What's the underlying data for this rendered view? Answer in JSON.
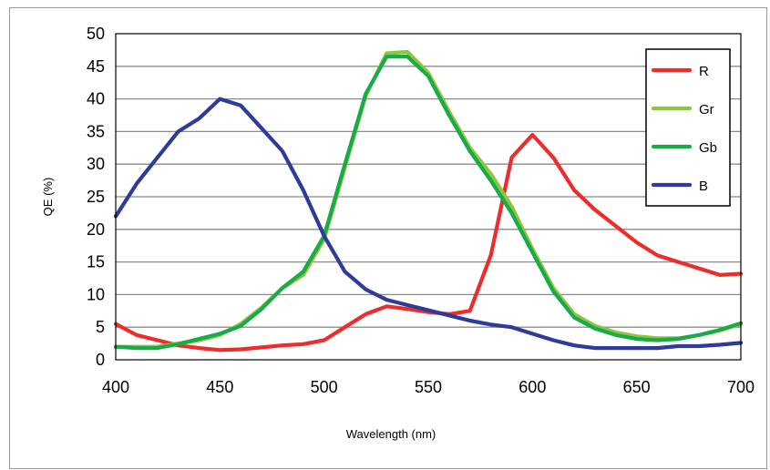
{
  "chart_data": {
    "type": "line",
    "title": "",
    "xlabel": "Wavelength (nm)",
    "ylabel": "QE (%)",
    "xlim": [
      400,
      700
    ],
    "ylim": [
      0,
      50
    ],
    "x_ticks": [
      400,
      450,
      500,
      550,
      600,
      650,
      700
    ],
    "y_ticks": [
      0,
      5,
      10,
      15,
      20,
      25,
      30,
      35,
      40,
      45,
      50
    ],
    "grid": "horizontal",
    "legend_position": "top-right",
    "x": [
      400,
      410,
      420,
      430,
      440,
      450,
      460,
      470,
      480,
      490,
      500,
      510,
      520,
      530,
      540,
      550,
      560,
      570,
      580,
      590,
      600,
      610,
      620,
      630,
      640,
      650,
      660,
      670,
      680,
      690,
      700
    ],
    "series": [
      {
        "name": "R",
        "color": "#ee2c2c",
        "values": [
          5.5,
          3.8,
          3.0,
          2.2,
          1.8,
          1.5,
          1.6,
          1.9,
          2.2,
          2.4,
          3.0,
          5.0,
          7.0,
          8.2,
          7.8,
          7.3,
          7.0,
          7.5,
          16,
          31,
          34.5,
          31,
          26,
          23,
          20.5,
          18,
          16,
          15,
          14,
          13,
          13.2
        ]
      },
      {
        "name": "Gr",
        "color": "#8cc63f",
        "values": [
          2.0,
          2.0,
          2.0,
          2.5,
          3.0,
          3.8,
          5.5,
          8.0,
          11.0,
          13.0,
          18.5,
          29.5,
          40.5,
          47.0,
          47.2,
          44.0,
          38.0,
          32.5,
          28.5,
          23.5,
          17.0,
          11.0,
          7.0,
          5.2,
          4.2,
          3.6,
          3.3,
          3.3,
          3.8,
          4.5,
          5.5
        ]
      },
      {
        "name": "Gb",
        "color": "#1aab48",
        "values": [
          2.0,
          1.8,
          1.8,
          2.4,
          3.2,
          4.0,
          5.2,
          7.8,
          11.0,
          13.5,
          19.0,
          30.0,
          40.8,
          46.5,
          46.5,
          43.5,
          37.5,
          32.0,
          27.5,
          22.5,
          16.5,
          10.5,
          6.5,
          4.8,
          3.8,
          3.2,
          3.0,
          3.2,
          3.8,
          4.6,
          5.6
        ]
      },
      {
        "name": "B",
        "color": "#2e3b9a",
        "values": [
          22.0,
          27.0,
          31.0,
          35.0,
          37.0,
          40.0,
          39.0,
          35.5,
          32.0,
          26.0,
          19.0,
          13.5,
          10.8,
          9.2,
          8.4,
          7.6,
          6.8,
          6.0,
          5.4,
          5.0,
          4.0,
          3.0,
          2.2,
          1.8,
          1.8,
          1.8,
          1.8,
          2.1,
          2.1,
          2.3,
          2.6
        ]
      }
    ]
  }
}
